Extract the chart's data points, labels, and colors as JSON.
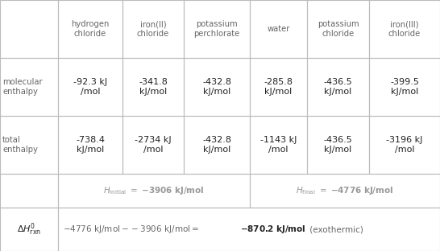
{
  "col_headers": [
    "hydrogen\nchloride",
    "iron(II)\nchloride",
    "potassium\nperchlorate",
    "water",
    "potassium\nchloride",
    "iron(III)\nchloride"
  ],
  "mol_enthalpy": [
    "-92.3 kJ\n/mol",
    "-341.8\nkJ/mol",
    "-432.8\nkJ/mol",
    "-285.8\nkJ/mol",
    "-436.5\nkJ/mol",
    "-399.5\nkJ/mol"
  ],
  "tot_enthalpy": [
    "-738.4\nkJ/mol",
    "-2734 kJ\n/mol",
    "-432.8\nkJ/mol",
    "-1143 kJ\n/mol",
    "-436.5\nkJ/mol",
    "-3196 kJ\n/mol"
  ],
  "bg_color": "#ffffff",
  "grid_color": "#bbbbbb",
  "text_color": "#222222",
  "label_color": "#666666"
}
